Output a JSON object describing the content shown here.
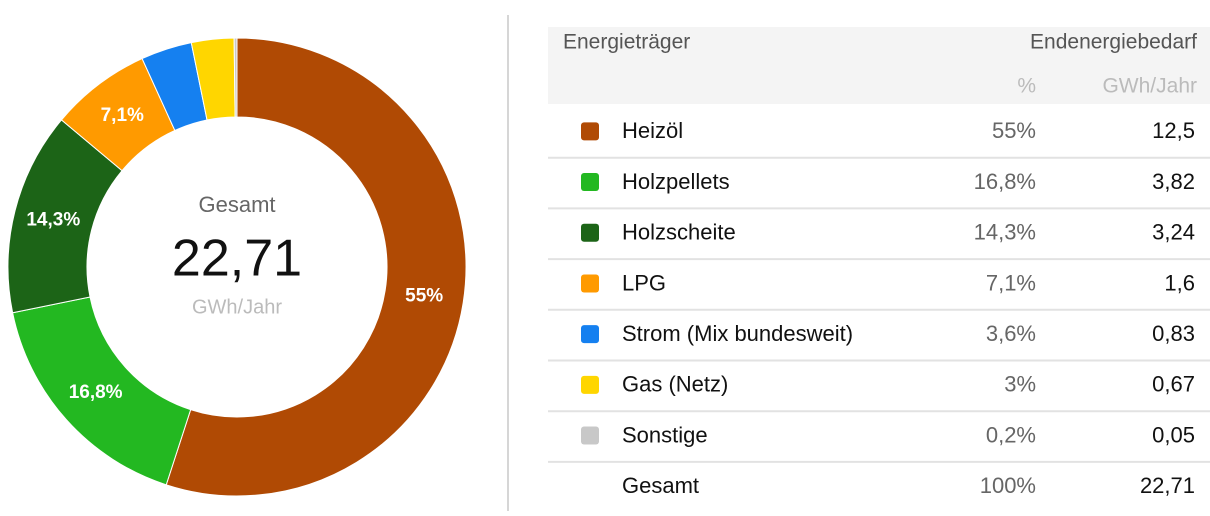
{
  "chart_data": {
    "type": "pie",
    "donut": true,
    "categories": [
      "Heizöl",
      "Holzpellets",
      "Holzscheite",
      "LPG",
      "Strom (Mix bundesweit)",
      "Gas (Netz)",
      "Sonstige"
    ],
    "values": [
      55,
      16.8,
      14.3,
      7.1,
      3.6,
      3,
      0.2
    ],
    "value_labels": [
      "55%",
      "16,8%",
      "14,3%",
      "7,1%",
      "3,6%",
      "3%",
      "0,2%"
    ],
    "colors": [
      "#b04a04",
      "#23b821",
      "#1c6417",
      "#ff9a00",
      "#1580f0",
      "#ffd600",
      "#c8c8c8"
    ],
    "center_label": "Gesamt",
    "center_value": "22,71",
    "center_unit": "GWh/Jahr"
  },
  "table": {
    "header": [
      "Energieträger",
      "Endenergiebedarf"
    ],
    "subheader": [
      "%",
      "GWh/Jahr"
    ],
    "gwh": [
      "12,5",
      "3,82",
      "3,24",
      "1,6",
      "0,83",
      "0,67",
      "0,05"
    ],
    "total": {
      "label": "Gesamt",
      "percent": "100%",
      "gwh": "22,71"
    }
  }
}
